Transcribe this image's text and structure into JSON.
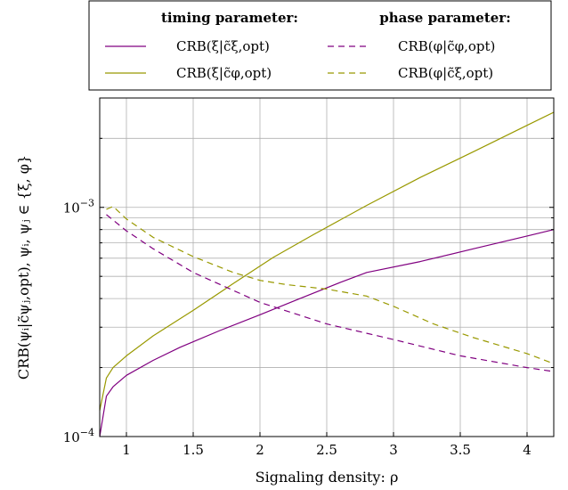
{
  "chart_data": {
    "type": "line",
    "xlabel": "Signaling density: ρ",
    "ylabel": "CRB(ψᵢ|c̃ψⱼ,opt), ψᵢ, ψⱼ ∈ {ξ, φ}",
    "xlim": [
      0.8,
      4.2
    ],
    "ylim": [
      0.0001,
      0.003
    ],
    "yscale": "log",
    "xticks": [
      1,
      1.5,
      2,
      2.5,
      3,
      3.5,
      4
    ],
    "xtick_labels": [
      "1",
      "1.5",
      "2",
      "2.5",
      "3",
      "3.5",
      "4"
    ],
    "ytick_labels": [
      {
        "value": 0.001,
        "mantissa": "10",
        "exponent": "−3"
      },
      {
        "value": 0.0001,
        "mantissa": "10",
        "exponent": "−4"
      }
    ],
    "grid": true,
    "legend": {
      "placement": "top",
      "column_headers": [
        "timing parameter:",
        "phase parameter:"
      ]
    },
    "colors": {
      "purple": "#800080",
      "olive": "#999900"
    },
    "series": [
      {
        "name": "CRB(ξ|c̃ξ,opt)",
        "color": "#800080",
        "dash": "solid",
        "x": [
          0.8,
          0.85,
          0.9,
          1.0,
          1.2,
          1.4,
          1.7,
          2.0,
          2.3,
          2.6,
          2.8,
          3.2,
          3.6,
          4.0,
          4.2
        ],
        "y": [
          0.0001,
          0.00015,
          0.000165,
          0.000185,
          0.000215,
          0.000245,
          0.00029,
          0.00034,
          0.0004,
          0.00047,
          0.00052,
          0.00058,
          0.00066,
          0.00075,
          0.0008
        ]
      },
      {
        "name": "CRB(ξ|c̃φ,opt)",
        "color": "#999900",
        "dash": "solid",
        "x": [
          0.8,
          0.85,
          0.9,
          1.0,
          1.2,
          1.5,
          1.8,
          2.1,
          2.4,
          2.8,
          3.2,
          3.6,
          4.0,
          4.2
        ],
        "y": [
          0.00013,
          0.00018,
          0.0002,
          0.000225,
          0.000275,
          0.000355,
          0.000465,
          0.000605,
          0.00076,
          0.00102,
          0.00135,
          0.00175,
          0.00228,
          0.0026
        ]
      },
      {
        "name": "CRB(φ|c̃φ,opt)",
        "color": "#800080",
        "dash": "dashed",
        "x": [
          0.85,
          0.9,
          1.0,
          1.2,
          1.5,
          2.0,
          2.5,
          3.0,
          3.5,
          4.0,
          4.2
        ],
        "y": [
          0.00093,
          0.00088,
          0.00079,
          0.00066,
          0.00052,
          0.000385,
          0.00031,
          0.000265,
          0.000225,
          0.0002,
          0.000192
        ]
      },
      {
        "name": "CRB(φ|c̃ξ,opt)",
        "color": "#999900",
        "dash": "dashed",
        "x": [
          0.85,
          0.9,
          1.0,
          1.2,
          1.5,
          1.8,
          2.0,
          2.2,
          2.5,
          2.8,
          3.0,
          3.3,
          3.6,
          4.0,
          4.2
        ],
        "y": [
          0.00098,
          0.00101,
          0.00089,
          0.00074,
          0.00061,
          0.00052,
          0.00048,
          0.00046,
          0.00044,
          0.00041,
          0.00037,
          0.00031,
          0.00027,
          0.00023,
          0.000208
        ]
      }
    ]
  }
}
